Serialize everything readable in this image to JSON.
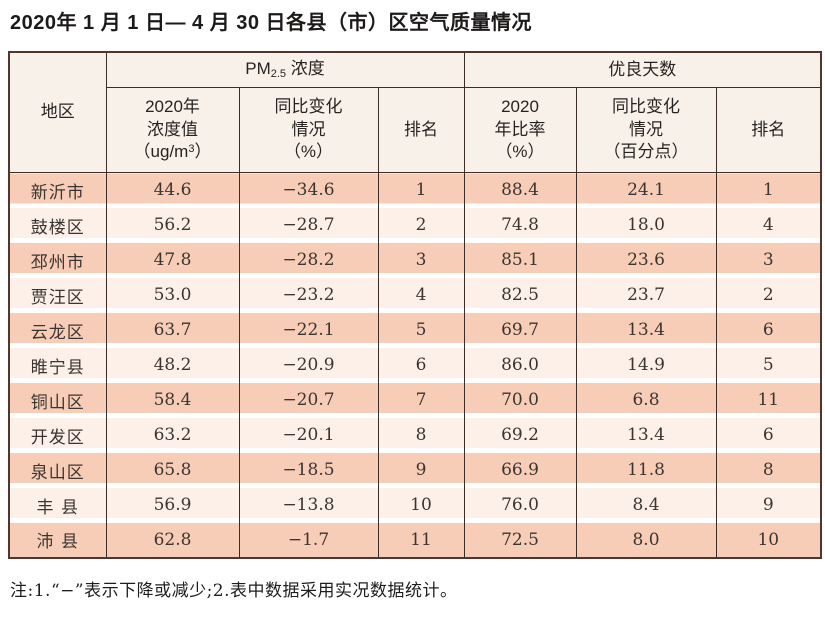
{
  "page": {
    "title": "2020年 1 月 1 日— 4 月 30 日各县（市）区空气质量情况",
    "note": "注:1.“−”表示下降或减少;2.表中数据采用实况数据统计。"
  },
  "colors": {
    "row_odd": "#f8cdb8",
    "row_even": "#fcf0e9",
    "header_bg": "#f8f1e9",
    "border": "#3b2c27",
    "border_outer": "#52352d"
  },
  "table": {
    "region_header": "地区",
    "pm_group": {
      "prefix": "PM",
      "subscript": "2.5",
      "suffix": " 浓度"
    },
    "good_group": "优良天数",
    "columns": {
      "pm_value": {
        "l1": "2020年",
        "l2": "浓度值",
        "l3_pre": "（ug/m",
        "l3_sup": "3",
        "l3_post": "）"
      },
      "pm_change": {
        "l1": "同比变化",
        "l2": "情况",
        "l3": "（%）"
      },
      "pm_rank": "排名",
      "good_rate": {
        "l1": "2020",
        "l2": "年比率",
        "l3": "（%）"
      },
      "good_change": {
        "l1": "同比变化",
        "l2": "情况",
        "l3": "（百分点）"
      },
      "good_rank": "排名"
    },
    "rows": [
      {
        "cells": [
          "新沂市",
          "44.6",
          "−34.6",
          "1",
          "88.4",
          "24.1",
          "1"
        ]
      },
      {
        "cells": [
          "鼓楼区",
          "56.2",
          "−28.7",
          "2",
          "74.8",
          "18.0",
          "4"
        ]
      },
      {
        "cells": [
          "邳州市",
          "47.8",
          "−28.2",
          "3",
          "85.1",
          "23.6",
          "3"
        ]
      },
      {
        "cells": [
          "贾汪区",
          "53.0",
          "−23.2",
          "4",
          "82.5",
          "23.7",
          "2"
        ]
      },
      {
        "cells": [
          "云龙区",
          "63.7",
          "−22.1",
          "5",
          "69.7",
          "13.4",
          "6"
        ]
      },
      {
        "cells": [
          "睢宁县",
          "48.2",
          "−20.9",
          "6",
          "86.0",
          "14.9",
          "5"
        ]
      },
      {
        "cells": [
          "铜山区",
          "58.4",
          "−20.7",
          "7",
          "70.0",
          "6.8",
          "11"
        ]
      },
      {
        "cells": [
          "开发区",
          "63.2",
          "−20.1",
          "8",
          "69.2",
          "13.4",
          "6"
        ]
      },
      {
        "cells": [
          "泉山区",
          "65.8",
          "−18.5",
          "9",
          "66.9",
          "11.8",
          "8"
        ]
      },
      {
        "cells": [
          "丰 县",
          "56.9",
          "−13.8",
          "10",
          "76.0",
          "8.4",
          "9"
        ]
      },
      {
        "cells": [
          "沛 县",
          "62.8",
          "−1.7",
          "11",
          "72.5",
          "8.0",
          "10"
        ]
      }
    ]
  }
}
